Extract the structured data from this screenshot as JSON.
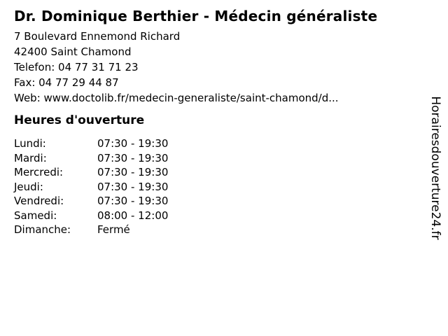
{
  "colors": {
    "text": "#000000",
    "background": "#ffffff"
  },
  "header": {
    "title": "Dr. Dominique Berthier - Médecin généraliste"
  },
  "contact": {
    "address_street": "7 Boulevard Ennemond Richard",
    "address_city": "42400 Saint Chamond",
    "phone_line": "Telefon: 04 77 31 71 23",
    "fax_line": "Fax: 04 77 29 44 87",
    "web_line": "Web: www.doctolib.fr/medecin-generaliste/saint-chamond/d..."
  },
  "hours": {
    "heading": "Heures d'ouverture",
    "rows": [
      {
        "day": "Lundi:",
        "time": "07:30 - 19:30"
      },
      {
        "day": "Mardi:",
        "time": "07:30 - 19:30"
      },
      {
        "day": "Mercredi:",
        "time": "07:30 - 19:30"
      },
      {
        "day": "Jeudi:",
        "time": "07:30 - 19:30"
      },
      {
        "day": "Vendredi:",
        "time": "07:30 - 19:30"
      },
      {
        "day": "Samedi:",
        "time": "08:00 - 12:00"
      },
      {
        "day": "Dimanche:",
        "time": "Fermé"
      }
    ]
  },
  "watermark": {
    "text": "Horairesdouverture24.fr"
  }
}
